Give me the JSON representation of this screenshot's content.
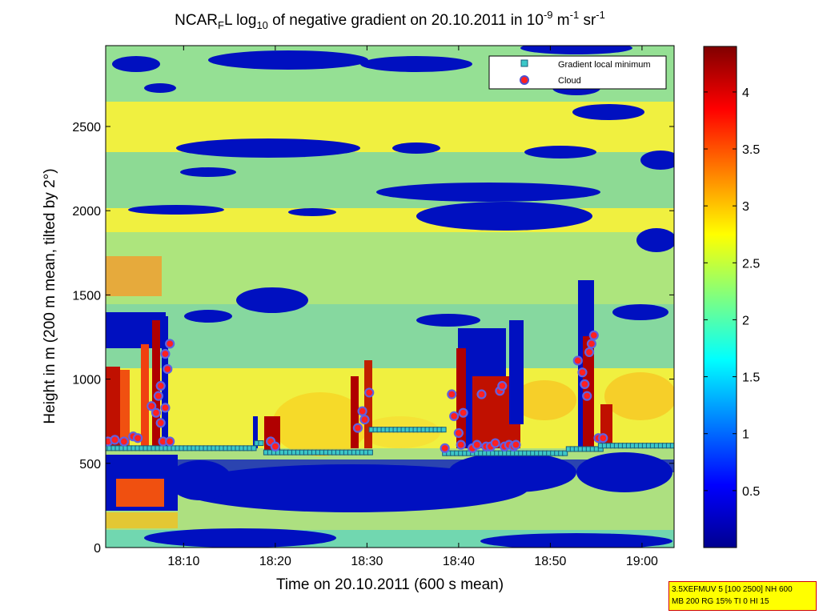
{
  "chart_data": {
    "type": "heatmap",
    "title": {
      "prefix": "NCAR",
      "prefix_sub": "F",
      "middle": "L log",
      "log_sub": "10",
      "rest": " of negative gradient on 20.10.2011 in 10",
      "exp1": "-9",
      "unit1": " m",
      "exp2": "-1",
      "unit2": " sr",
      "exp3": "-1"
    },
    "xlabel": "Time on 20.10.2011 (600 s mean)",
    "ylabel": "Height in m (200 m mean, tilted by 2°)",
    "xlim": [
      "18:01:30",
      "19:03:30"
    ],
    "ylim": [
      0,
      2980
    ],
    "x_ticks": [
      "18:10",
      "18:20",
      "18:30",
      "18:40",
      "18:50",
      "19:00"
    ],
    "y_ticks": [
      0,
      500,
      1000,
      1500,
      2000,
      2500
    ],
    "colorbar": {
      "range": [
        0,
        4.4
      ],
      "ticks": [
        0.5,
        1,
        1.5,
        2,
        2.5,
        3,
        3.5,
        4
      ]
    },
    "legend": {
      "position": "top-right",
      "entries": [
        {
          "name": "Gradient local minimum",
          "color": "#3cc8c8"
        },
        {
          "name": "Cloud",
          "color": "#c81e78"
        }
      ]
    },
    "gradient_local_minimum": {
      "segments": [
        {
          "from": "18:01:30",
          "to": "18:18:00",
          "height": 590
        },
        {
          "from": "18:18:00",
          "to": "18:18:30",
          "height": 620
        },
        {
          "from": "18:19:00",
          "to": "18:30:30",
          "height": 565
        },
        {
          "from": "18:30:30",
          "to": "18:38:30",
          "height": 700
        },
        {
          "from": "18:38:30",
          "to": "18:52:00",
          "height": 560
        },
        {
          "from": "18:52:00",
          "to": "18:55:30",
          "height": 585
        },
        {
          "from": "18:55:30",
          "to": "19:03:30",
          "height": 605
        }
      ]
    },
    "cloud": {
      "points": [
        [
          "18:01:45",
          630
        ],
        [
          "18:02:30",
          640
        ],
        [
          "18:03:30",
          630
        ],
        [
          "18:04:30",
          660
        ],
        [
          "18:05:00",
          650
        ],
        [
          "18:06:30",
          840
        ],
        [
          "18:07:00",
          800
        ],
        [
          "18:07:15",
          900
        ],
        [
          "18:07:30",
          960
        ],
        [
          "18:07:30",
          740
        ],
        [
          "18:07:45",
          630
        ],
        [
          "18:08:00",
          830
        ],
        [
          "18:08:00",
          1150
        ],
        [
          "18:08:15",
          1060
        ],
        [
          "18:08:30",
          1210
        ],
        [
          "18:08:30",
          630
        ],
        [
          "18:19:30",
          630
        ],
        [
          "18:20:00",
          600
        ],
        [
          "18:29:00",
          710
        ],
        [
          "18:29:30",
          810
        ],
        [
          "18:29:45",
          760
        ],
        [
          "18:30:15",
          920
        ],
        [
          "18:38:30",
          590
        ],
        [
          "18:39:15",
          910
        ],
        [
          "18:39:30",
          780
        ],
        [
          "18:40:00",
          680
        ],
        [
          "18:40:15",
          610
        ],
        [
          "18:40:30",
          800
        ],
        [
          "18:41:30",
          590
        ],
        [
          "18:42:00",
          610
        ],
        [
          "18:42:30",
          910
        ],
        [
          "18:43:00",
          600
        ],
        [
          "18:43:30",
          600
        ],
        [
          "18:44:00",
          620
        ],
        [
          "18:44:30",
          930
        ],
        [
          "18:44:45",
          960
        ],
        [
          "18:45:00",
          600
        ],
        [
          "18:45:30",
          610
        ],
        [
          "18:46:00",
          600
        ],
        [
          "18:46:15",
          610
        ],
        [
          "18:53:00",
          1110
        ],
        [
          "18:53:30",
          1040
        ],
        [
          "18:53:45",
          970
        ],
        [
          "18:54:00",
          900
        ],
        [
          "18:54:15",
          1160
        ],
        [
          "18:54:30",
          1210
        ],
        [
          "18:54:45",
          1260
        ],
        [
          "18:55:15",
          650
        ],
        [
          "18:55:45",
          650
        ]
      ]
    }
  },
  "info_box": {
    "line1": "3.5XEFMUV 5 [100 2500] NH 600",
    "line2": "MB 200 RG 15% TI 0 HI 15"
  }
}
